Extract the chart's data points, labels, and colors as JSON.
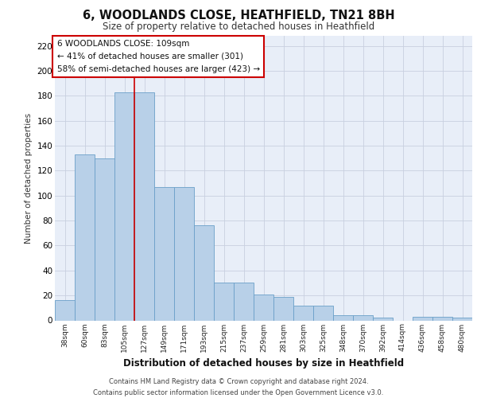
{
  "title1": "6, WOODLANDS CLOSE, HEATHFIELD, TN21 8BH",
  "title2": "Size of property relative to detached houses in Heathfield",
  "xlabel": "Distribution of detached houses by size in Heathfield",
  "ylabel": "Number of detached properties",
  "categories": [
    "38sqm",
    "60sqm",
    "83sqm",
    "105sqm",
    "127sqm",
    "149sqm",
    "171sqm",
    "193sqm",
    "215sqm",
    "237sqm",
    "259sqm",
    "281sqm",
    "303sqm",
    "325sqm",
    "348sqm",
    "370sqm",
    "392sqm",
    "414sqm",
    "436sqm",
    "458sqm",
    "480sqm"
  ],
  "values": [
    16,
    133,
    130,
    183,
    183,
    107,
    107,
    76,
    30,
    30,
    21,
    19,
    12,
    12,
    4,
    4,
    2,
    0,
    3,
    3,
    2
  ],
  "bar_color": "#b8d0e8",
  "bar_edge_color": "#6a9fc8",
  "background_color": "#e8eef8",
  "grid_color": "#c8d0e0",
  "vline_x": 3.5,
  "vline_color": "#cc0000",
  "annotation_text": "6 WOODLANDS CLOSE: 109sqm\n← 41% of detached houses are smaller (301)\n58% of semi-detached houses are larger (423) →",
  "annotation_box_color": "#ffffff",
  "annotation_box_edge": "#cc0000",
  "ylim": [
    0,
    228
  ],
  "yticks": [
    0,
    20,
    40,
    60,
    80,
    100,
    120,
    140,
    160,
    180,
    200,
    220
  ],
  "footer1": "Contains HM Land Registry data © Crown copyright and database right 2024.",
  "footer2": "Contains public sector information licensed under the Open Government Licence v3.0."
}
